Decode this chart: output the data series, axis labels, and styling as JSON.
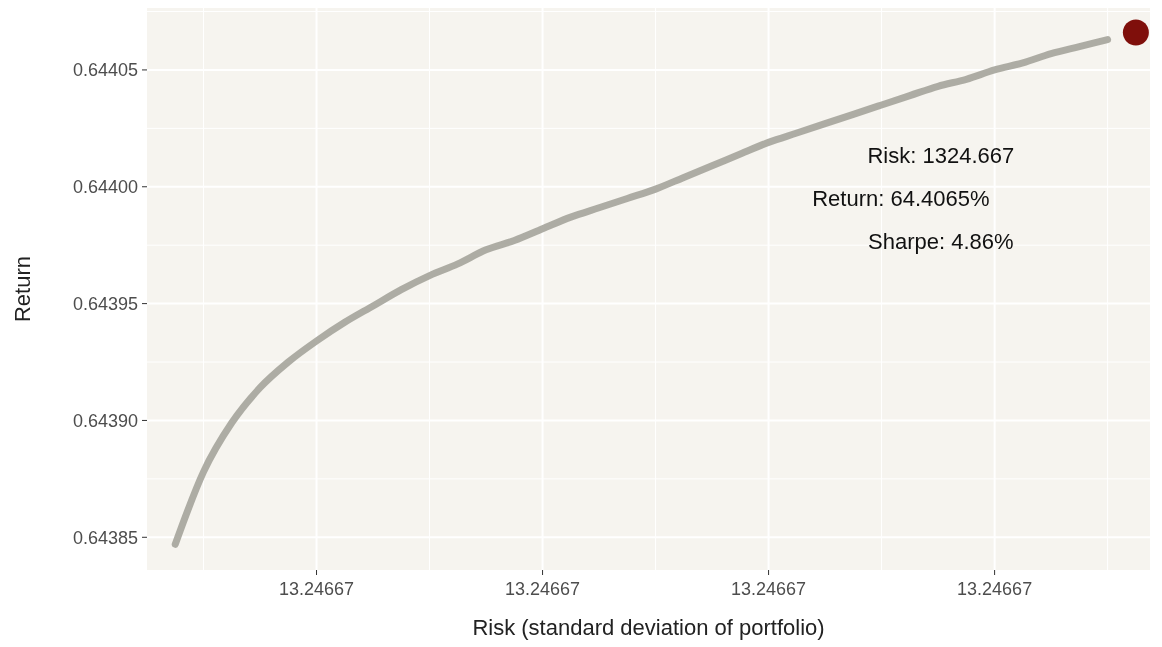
{
  "chart_data": {
    "type": "line",
    "xlabel": "Risk (standard deviation of portfolio)",
    "ylabel": "Return",
    "categories": [
      null,
      null,
      null,
      null,
      null,
      "13.24667",
      null,
      null,
      null,
      null,
      null,
      null,
      null,
      "13.24667",
      null,
      null,
      null,
      null,
      null,
      null,
      null,
      "13.24667",
      null,
      null,
      null,
      null,
      null,
      null,
      null,
      "13.24667",
      null,
      null,
      null,
      null,
      null
    ],
    "ylim": [
      0.643836,
      0.6440765
    ],
    "yticks": [
      {
        "value": 0.64385,
        "label": "0.64385"
      },
      {
        "value": 0.6439,
        "label": "0.64390"
      },
      {
        "value": 0.64395,
        "label": "0.64395"
      },
      {
        "value": 0.644,
        "label": "0.64400"
      },
      {
        "value": 0.64405,
        "label": "0.64405"
      }
    ],
    "grid": true,
    "series": [
      {
        "color": "#a5a49b",
        "values": [
          0.643847,
          0.643878,
          0.643899,
          0.643914,
          0.643925,
          0.643934,
          0.643942,
          0.643949,
          0.643956,
          0.643962,
          0.643967,
          0.643973,
          0.643977,
          0.643982,
          0.643987,
          0.643991,
          0.643995,
          0.643999,
          0.644004,
          0.644009,
          0.644014,
          0.644019,
          0.644023,
          0.644027,
          0.644031,
          0.644035,
          0.644039,
          0.644043,
          0.644046,
          0.64405,
          0.644053,
          0.644057,
          0.64406,
          0.644063,
          null
        ]
      },
      {
        "type": "scatter",
        "color": "#7f0f0b",
        "marker": "circle",
        "values": [
          null,
          null,
          null,
          null,
          null,
          null,
          null,
          null,
          null,
          null,
          null,
          null,
          null,
          null,
          null,
          null,
          null,
          null,
          null,
          null,
          null,
          null,
          null,
          null,
          null,
          null,
          null,
          null,
          null,
          null,
          null,
          null,
          null,
          null,
          0.644066
        ]
      }
    ],
    "annotations": [
      "Risk: 1324.667",
      "Return: 64.4065%",
      "Sharpe: 4.86%"
    ]
  }
}
